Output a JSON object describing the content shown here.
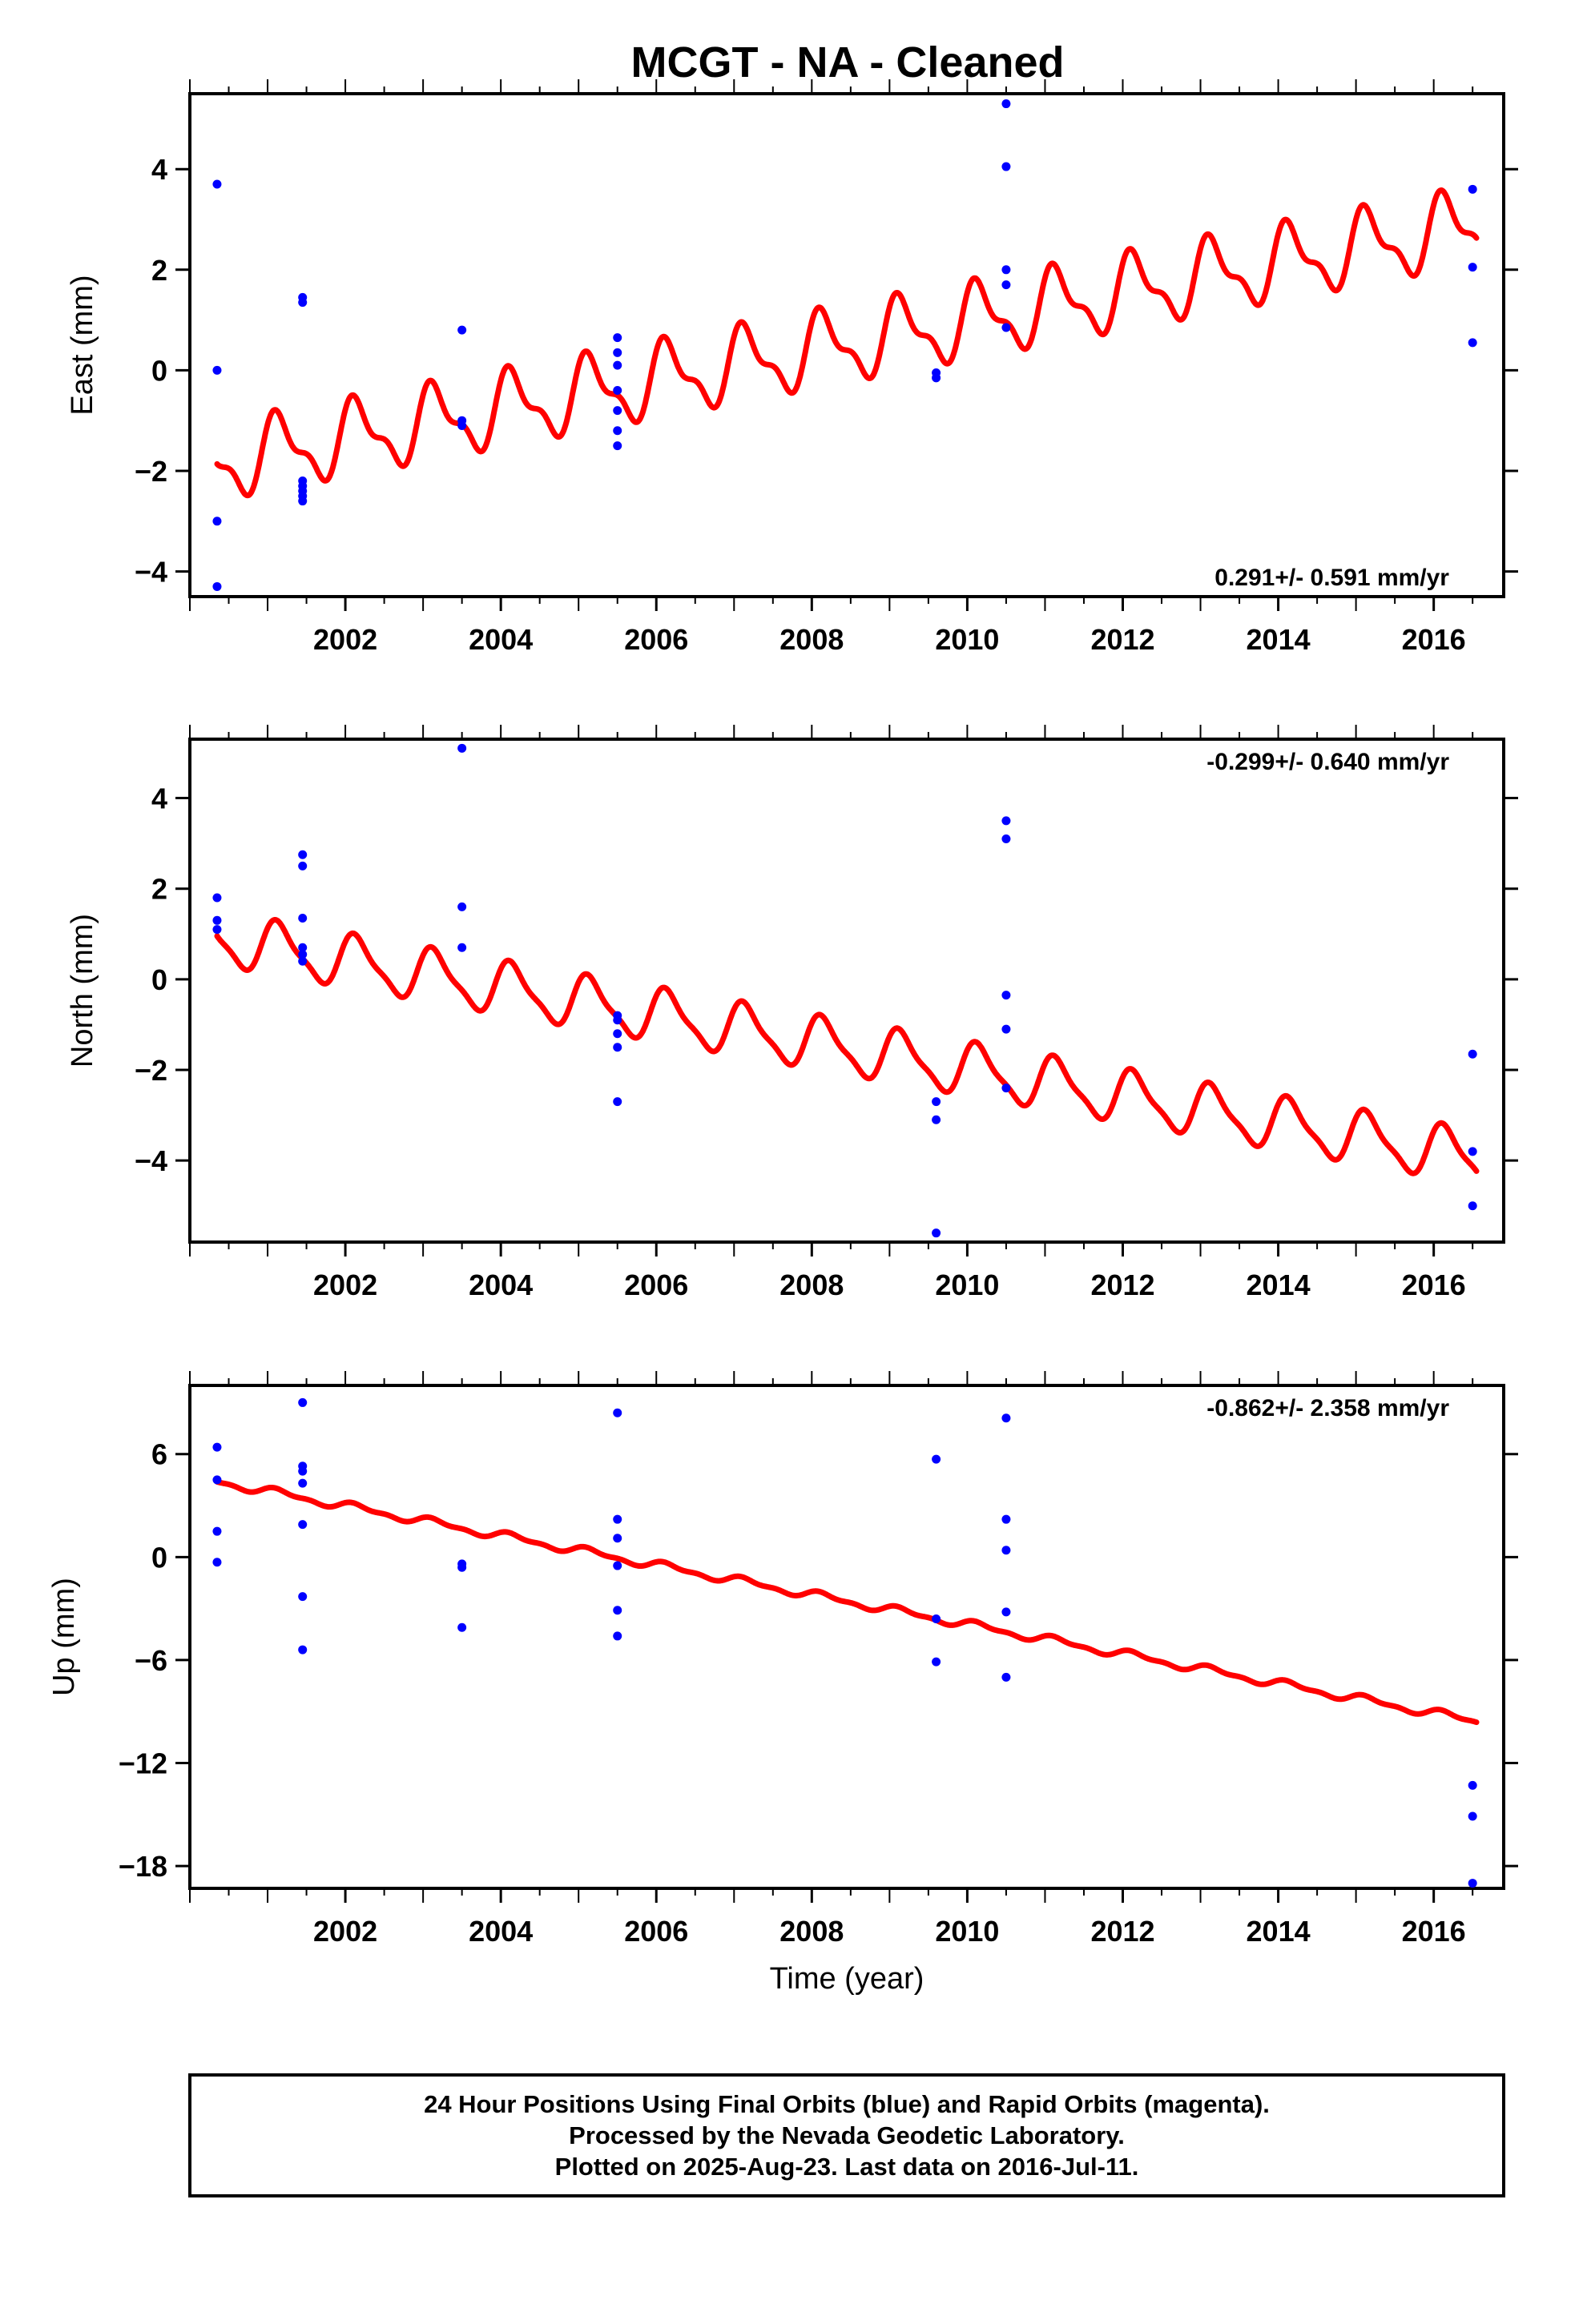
{
  "title": "MCGT  - NA - Cleaned",
  "footer": {
    "lines": [
      "24 Hour Positions Using Final Orbits (blue) and Rapid Orbits (magenta).",
      "Processed by the Nevada Geodetic Laboratory.",
      "Plotted on 2025-Aug-23. Last data on 2016-Jul-11."
    ]
  },
  "colors": {
    "data_points": "#0000ff",
    "model_line": "#ff0000",
    "frame": "#000000"
  },
  "chart_data": [
    {
      "type": "scatter",
      "panel": "east",
      "ylabel": "East (mm)",
      "xlabel": "",
      "xlim": [
        2000.0,
        2016.9
      ],
      "ylim": [
        -4.5,
        5.5
      ],
      "x_ticks": [
        2002,
        2004,
        2006,
        2008,
        2010,
        2012,
        2014,
        2016
      ],
      "y_ticks": [
        -4,
        -2,
        0,
        2,
        4
      ],
      "y_tick_labels": [
        "−4",
        "−2",
        "0",
        "2",
        "4"
      ],
      "rate_text": "0.291+/- 0.591 mm/yr",
      "rate_position": "bottom-right",
      "points": [
        {
          "x": 2000.35,
          "y": 3.7
        },
        {
          "x": 2000.35,
          "y": 0.0
        },
        {
          "x": 2000.35,
          "y": -3.0
        },
        {
          "x": 2000.35,
          "y": -4.3
        },
        {
          "x": 2001.45,
          "y": 1.45
        },
        {
          "x": 2001.45,
          "y": 1.35
        },
        {
          "x": 2001.45,
          "y": -2.2
        },
        {
          "x": 2001.45,
          "y": -2.3
        },
        {
          "x": 2001.45,
          "y": -2.4
        },
        {
          "x": 2001.45,
          "y": -2.5
        },
        {
          "x": 2001.45,
          "y": -2.6
        },
        {
          "x": 2003.5,
          "y": 0.8
        },
        {
          "x": 2003.5,
          "y": -1.0
        },
        {
          "x": 2003.5,
          "y": -1.1
        },
        {
          "x": 2005.5,
          "y": 0.65
        },
        {
          "x": 2005.5,
          "y": 0.35
        },
        {
          "x": 2005.5,
          "y": 0.1
        },
        {
          "x": 2005.5,
          "y": -0.4
        },
        {
          "x": 2005.5,
          "y": -0.8
        },
        {
          "x": 2005.5,
          "y": -1.2
        },
        {
          "x": 2005.5,
          "y": -1.5
        },
        {
          "x": 2009.6,
          "y": -0.05
        },
        {
          "x": 2009.6,
          "y": -0.15
        },
        {
          "x": 2010.5,
          "y": 5.3
        },
        {
          "x": 2010.5,
          "y": 4.05
        },
        {
          "x": 2010.5,
          "y": 2.0
        },
        {
          "x": 2010.5,
          "y": 1.7
        },
        {
          "x": 2010.5,
          "y": 0.85
        },
        {
          "x": 2016.5,
          "y": 3.6
        },
        {
          "x": 2016.5,
          "y": 2.05
        },
        {
          "x": 2016.5,
          "y": 0.55
        }
      ],
      "model": {
        "x_range": [
          2000.35,
          2016.55
        ],
        "offset_at_2000": -1.95,
        "slope_per_yr": 0.291,
        "annual_amplitude": 0.65,
        "annual_phase": 0.6,
        "semiannual_amplitude": 0.28,
        "semiannual_phase": 0.9
      }
    },
    {
      "type": "scatter",
      "panel": "north",
      "ylabel": "North (mm)",
      "xlabel": "",
      "xlim": [
        2000.0,
        2016.9
      ],
      "ylim": [
        -5.8,
        5.3
      ],
      "x_ticks": [
        2002,
        2004,
        2006,
        2008,
        2010,
        2012,
        2014,
        2016
      ],
      "y_ticks": [
        -4,
        -2,
        0,
        2,
        4
      ],
      "y_tick_labels": [
        "−4",
        "−2",
        "0",
        "2",
        "4"
      ],
      "rate_text": "-0.299+/- 0.640 mm/yr",
      "rate_position": "top-right",
      "points": [
        {
          "x": 2000.35,
          "y": 1.8
        },
        {
          "x": 2000.35,
          "y": 1.3
        },
        {
          "x": 2000.35,
          "y": 1.1
        },
        {
          "x": 2001.45,
          "y": 2.75
        },
        {
          "x": 2001.45,
          "y": 2.5
        },
        {
          "x": 2001.45,
          "y": 1.35
        },
        {
          "x": 2001.45,
          "y": 0.7
        },
        {
          "x": 2001.45,
          "y": 0.55
        },
        {
          "x": 2001.45,
          "y": 0.4
        },
        {
          "x": 2003.5,
          "y": 5.1
        },
        {
          "x": 2003.5,
          "y": 1.6
        },
        {
          "x": 2003.5,
          "y": 0.7
        },
        {
          "x": 2005.5,
          "y": -0.8
        },
        {
          "x": 2005.5,
          "y": -0.9
        },
        {
          "x": 2005.5,
          "y": -1.2
        },
        {
          "x": 2005.5,
          "y": -1.5
        },
        {
          "x": 2005.5,
          "y": -2.7
        },
        {
          "x": 2009.6,
          "y": -2.7
        },
        {
          "x": 2009.6,
          "y": -3.1
        },
        {
          "x": 2009.6,
          "y": -5.6
        },
        {
          "x": 2010.5,
          "y": 3.5
        },
        {
          "x": 2010.5,
          "y": 3.1
        },
        {
          "x": 2010.5,
          "y": -0.35
        },
        {
          "x": 2010.5,
          "y": -1.1
        },
        {
          "x": 2010.5,
          "y": -2.4
        },
        {
          "x": 2016.5,
          "y": -1.65
        },
        {
          "x": 2016.5,
          "y": -3.8
        },
        {
          "x": 2016.5,
          "y": -5.0
        }
      ],
      "model": {
        "x_range": [
          2000.35,
          2016.55
        ],
        "offset_at_2000": 1.0,
        "slope_per_yr": -0.299,
        "annual_amplitude": 0.55,
        "annual_phase": 0.6,
        "semiannual_amplitude": 0.15,
        "semiannual_phase": 0.9
      }
    },
    {
      "type": "scatter",
      "panel": "up",
      "ylabel": "Up (mm)",
      "xlabel": "Time (year)",
      "xlim": [
        2000.0,
        2016.9
      ],
      "ylim": [
        -19.3,
        10.0
      ],
      "x_ticks": [
        2002,
        2004,
        2006,
        2008,
        2010,
        2012,
        2014,
        2016
      ],
      "y_ticks": [
        -18,
        -12,
        -6,
        0,
        6
      ],
      "y_tick_labels": [
        "−18",
        "−12",
        "−6",
        "0",
        "6"
      ],
      "rate_text": "-0.862+/- 2.358 mm/yr",
      "rate_position": "top-right",
      "points": [
        {
          "x": 2000.35,
          "y": 6.4
        },
        {
          "x": 2000.35,
          "y": 4.5
        },
        {
          "x": 2000.35,
          "y": 1.5
        },
        {
          "x": 2000.35,
          "y": -0.3
        },
        {
          "x": 2001.45,
          "y": 9.0
        },
        {
          "x": 2001.45,
          "y": 5.3
        },
        {
          "x": 2001.45,
          "y": 5.0
        },
        {
          "x": 2001.45,
          "y": 4.3
        },
        {
          "x": 2001.45,
          "y": 1.9
        },
        {
          "x": 2001.45,
          "y": -2.3
        },
        {
          "x": 2001.45,
          "y": -5.4
        },
        {
          "x": 2003.5,
          "y": -0.4
        },
        {
          "x": 2003.5,
          "y": -0.6
        },
        {
          "x": 2003.5,
          "y": -4.1
        },
        {
          "x": 2005.5,
          "y": 8.4
        },
        {
          "x": 2005.5,
          "y": 2.2
        },
        {
          "x": 2005.5,
          "y": 1.1
        },
        {
          "x": 2005.5,
          "y": -0.5
        },
        {
          "x": 2005.5,
          "y": -3.1
        },
        {
          "x": 2005.5,
          "y": -4.6
        },
        {
          "x": 2009.6,
          "y": 5.7
        },
        {
          "x": 2009.6,
          "y": -3.6
        },
        {
          "x": 2009.6,
          "y": -6.1
        },
        {
          "x": 2010.5,
          "y": 8.1
        },
        {
          "x": 2010.5,
          "y": 2.2
        },
        {
          "x": 2010.5,
          "y": 0.4
        },
        {
          "x": 2010.5,
          "y": -3.2
        },
        {
          "x": 2010.5,
          "y": -7.0
        },
        {
          "x": 2016.5,
          "y": -13.3
        },
        {
          "x": 2016.5,
          "y": -15.1
        },
        {
          "x": 2016.5,
          "y": -19.0
        }
      ],
      "model": {
        "x_range": [
          2000.35,
          2016.55
        ],
        "offset_at_2000": 4.7,
        "slope_per_yr": -0.862,
        "annual_amplitude": 0.2,
        "annual_phase": 0.6,
        "semiannual_amplitude": 0.1,
        "semiannual_phase": 0.9
      }
    }
  ]
}
